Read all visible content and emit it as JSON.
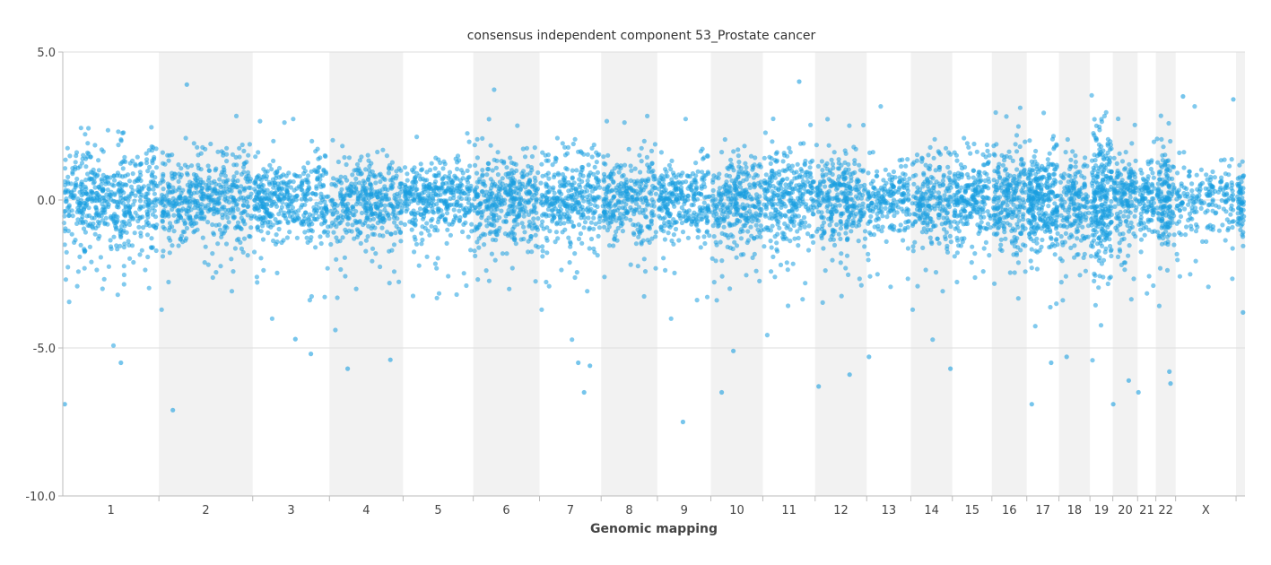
{
  "chart_data": {
    "type": "scatter",
    "title": "consensus independent component 53_Prostate cancer",
    "xlabel": "Genomic mapping",
    "ylabel": "",
    "ylim": [
      -10.0,
      5.0
    ],
    "yticks": [
      "5.0",
      "0.0",
      "-5.0",
      "-10.0"
    ],
    "grid": "horizontal lines at y ticks",
    "point_color": "#1a9ee0",
    "band_color": "#f2f2f2",
    "chromosomes": [
      {
        "label": "1",
        "start": 0.0,
        "end": 248.0
      },
      {
        "label": "2",
        "start": 248.0,
        "end": 490.0
      },
      {
        "label": "3",
        "start": 490.0,
        "end": 688.0
      },
      {
        "label": "4",
        "start": 688.0,
        "end": 878.0
      },
      {
        "label": "5",
        "start": 878.0,
        "end": 1059.0
      },
      {
        "label": "6",
        "start": 1059.0,
        "end": 1230.0
      },
      {
        "label": "7",
        "start": 1230.0,
        "end": 1389.0
      },
      {
        "label": "8",
        "start": 1389.0,
        "end": 1534.0
      },
      {
        "label": "9",
        "start": 1534.0,
        "end": 1672.0
      },
      {
        "label": "10",
        "start": 1672.0,
        "end": 1806.0
      },
      {
        "label": "11",
        "start": 1806.0,
        "end": 1941.0
      },
      {
        "label": "12",
        "start": 1941.0,
        "end": 2074.0
      },
      {
        "label": "13",
        "start": 2074.0,
        "end": 2188.0
      },
      {
        "label": "14",
        "start": 2188.0,
        "end": 2295.0
      },
      {
        "label": "15",
        "start": 2295.0,
        "end": 2397.0
      },
      {
        "label": "16",
        "start": 2397.0,
        "end": 2487.0
      },
      {
        "label": "17",
        "start": 2487.0,
        "end": 2570.0
      },
      {
        "label": "18",
        "start": 2570.0,
        "end": 2650.0
      },
      {
        "label": "19",
        "start": 2650.0,
        "end": 2709.0
      },
      {
        "label": "20",
        "start": 2709.0,
        "end": 2773.0
      },
      {
        "label": "21",
        "start": 2773.0,
        "end": 2820.0
      },
      {
        "label": "22",
        "start": 2820.0,
        "end": 2871.0
      },
      {
        "label": "X",
        "start": 2871.0,
        "end": 3027.0
      },
      {
        "label": "",
        "start": 3027.0,
        "end": 3050.0
      }
    ],
    "points_per_chromosome": [
      520,
      480,
      400,
      380,
      360,
      380,
      320,
      290,
      280,
      300,
      300,
      300,
      200,
      220,
      230,
      240,
      290,
      180,
      260,
      160,
      100,
      150,
      190,
      60
    ],
    "spread_per_chromosome": [
      0.9,
      0.8,
      0.8,
      0.8,
      0.7,
      0.9,
      0.8,
      0.8,
      0.8,
      0.9,
      0.9,
      0.9,
      0.7,
      0.8,
      0.8,
      1.0,
      1.0,
      0.9,
      1.4,
      0.9,
      0.7,
      1.0,
      0.7,
      0.8
    ],
    "outliers": [
      {
        "x": 5,
        "y": -6.9
      },
      {
        "x": 150,
        "y": -5.5
      },
      {
        "x": 284,
        "y": -7.1
      },
      {
        "x": 320,
        "y": 3.9
      },
      {
        "x": 600,
        "y": -4.7
      },
      {
        "x": 640,
        "y": -5.2
      },
      {
        "x": 735,
        "y": -5.7
      },
      {
        "x": 845,
        "y": -5.4
      },
      {
        "x": 1330,
        "y": -5.5
      },
      {
        "x": 1345,
        "y": -6.5
      },
      {
        "x": 1360,
        "y": -5.6
      },
      {
        "x": 1600,
        "y": -7.5
      },
      {
        "x": 1700,
        "y": -6.5
      },
      {
        "x": 1730,
        "y": -5.1
      },
      {
        "x": 1900,
        "y": 4.0
      },
      {
        "x": 1950,
        "y": -6.3
      },
      {
        "x": 2030,
        "y": -5.9
      },
      {
        "x": 2080,
        "y": -5.3
      },
      {
        "x": 2290,
        "y": -5.7
      },
      {
        "x": 2500,
        "y": -6.9
      },
      {
        "x": 2550,
        "y": -5.5
      },
      {
        "x": 2590,
        "y": -5.3
      },
      {
        "x": 2710,
        "y": -6.9
      },
      {
        "x": 2750,
        "y": -6.1
      },
      {
        "x": 2775,
        "y": -6.5
      },
      {
        "x": 2855,
        "y": -5.8
      },
      {
        "x": 2858,
        "y": -6.2
      },
      {
        "x": 2890,
        "y": 3.5
      },
      {
        "x": 3020,
        "y": 3.4
      },
      {
        "x": 3045,
        "y": -3.8
      }
    ]
  }
}
